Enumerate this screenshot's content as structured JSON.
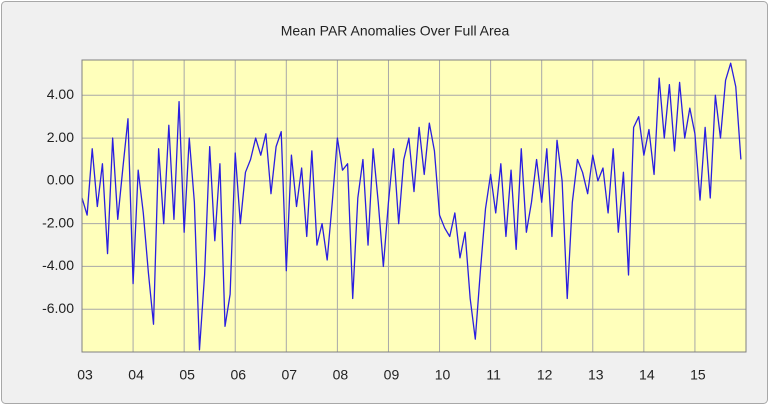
{
  "chart_data": {
    "type": "line",
    "title": "Mean PAR Anomalies Over Full Area",
    "x": [
      2003.0,
      2003.1,
      2003.2,
      2003.3,
      2003.4,
      2003.5,
      2003.6,
      2003.7,
      2003.8,
      2003.9,
      2004.0,
      2004.1,
      2004.2,
      2004.3,
      2004.4,
      2004.5,
      2004.6,
      2004.7,
      2004.8,
      2004.9,
      2005.0,
      2005.1,
      2005.2,
      2005.3,
      2005.4,
      2005.5,
      2005.6,
      2005.7,
      2005.8,
      2005.9,
      2006.0,
      2006.1,
      2006.2,
      2006.3,
      2006.4,
      2006.5,
      2006.6,
      2006.7,
      2006.8,
      2006.9,
      2007.0,
      2007.1,
      2007.2,
      2007.3,
      2007.4,
      2007.5,
      2007.6,
      2007.7,
      2007.8,
      2007.9,
      2008.0,
      2008.1,
      2008.2,
      2008.3,
      2008.4,
      2008.5,
      2008.6,
      2008.7,
      2008.8,
      2008.9,
      2009.0,
      2009.1,
      2009.2,
      2009.3,
      2009.4,
      2009.5,
      2009.6,
      2009.7,
      2009.8,
      2009.9,
      2010.0,
      2010.1,
      2010.2,
      2010.3,
      2010.4,
      2010.5,
      2010.6,
      2010.7,
      2010.8,
      2010.9,
      2011.0,
      2011.1,
      2011.2,
      2011.3,
      2011.4,
      2011.5,
      2011.6,
      2011.7,
      2011.8,
      2011.9,
      2012.0,
      2012.1,
      2012.2,
      2012.3,
      2012.4,
      2012.5,
      2012.6,
      2012.7,
      2012.8,
      2012.9,
      2013.0,
      2013.1,
      2013.2,
      2013.3,
      2013.4,
      2013.5,
      2013.6,
      2013.7,
      2013.8,
      2013.9,
      2014.0,
      2014.1,
      2014.2,
      2014.3,
      2014.4,
      2014.5,
      2014.6,
      2014.7,
      2014.8,
      2014.9,
      2015.0,
      2015.1,
      2015.2,
      2015.3,
      2015.4,
      2015.5,
      2015.6,
      2015.7,
      2015.8,
      2015.9
    ],
    "values": [
      -0.8,
      -1.6,
      1.5,
      -1.2,
      0.8,
      -3.4,
      2.0,
      -1.8,
      0.6,
      2.9,
      -4.8,
      0.5,
      -1.5,
      -4.3,
      -6.7,
      1.5,
      -2.0,
      2.6,
      -1.8,
      3.7,
      -2.4,
      2.0,
      -1.0,
      -7.9,
      -4.4,
      1.6,
      -2.8,
      0.8,
      -6.8,
      -5.3,
      1.3,
      -2.0,
      0.4,
      1.0,
      2.0,
      1.2,
      2.2,
      -0.6,
      1.6,
      2.3,
      -4.2,
      1.2,
      -1.2,
      0.6,
      -2.6,
      1.4,
      -3.0,
      -2.0,
      -3.7,
      -1.0,
      2.0,
      0.5,
      0.8,
      -5.5,
      -0.8,
      1.0,
      -3.0,
      1.5,
      -1.0,
      -4.0,
      -1.0,
      1.5,
      -2.0,
      1.0,
      2.0,
      -0.5,
      2.5,
      0.3,
      2.7,
      1.4,
      -1.6,
      -2.2,
      -2.6,
      -1.5,
      -3.6,
      -2.4,
      -5.5,
      -7.4,
      -4.2,
      -1.3,
      0.3,
      -1.5,
      0.8,
      -2.6,
      0.5,
      -3.2,
      1.5,
      -2.4,
      -1.0,
      1.0,
      -1.0,
      1.5,
      -2.6,
      1.9,
      0.0,
      -5.5,
      -1.0,
      1.0,
      0.4,
      -0.6,
      1.2,
      0.0,
      0.6,
      -1.5,
      1.5,
      -2.4,
      0.4,
      -4.4,
      2.5,
      3.0,
      1.2,
      2.4,
      0.3,
      4.8,
      2.0,
      4.5,
      1.4,
      4.6,
      2.0,
      3.4,
      2.2,
      -0.9,
      2.5,
      -0.8,
      4.0,
      2.0,
      4.7,
      5.5,
      4.4,
      1.0
    ],
    "color": "#2a1ee0",
    "xlim": [
      2003,
      2016
    ],
    "xticks": [
      {
        "value": 2003,
        "label": "03"
      },
      {
        "value": 2004,
        "label": "04"
      },
      {
        "value": 2005,
        "label": "05"
      },
      {
        "value": 2006,
        "label": "06"
      },
      {
        "value": 2007,
        "label": "07"
      },
      {
        "value": 2008,
        "label": "08"
      },
      {
        "value": 2009,
        "label": "09"
      },
      {
        "value": 2010,
        "label": "10"
      },
      {
        "value": 2011,
        "label": "11"
      },
      {
        "value": 2012,
        "label": "12"
      },
      {
        "value": 2013,
        "label": "13"
      },
      {
        "value": 2014,
        "label": "14"
      },
      {
        "value": 2015,
        "label": "15"
      }
    ],
    "ylim": [
      -8,
      5.65
    ],
    "yticks": [
      {
        "value": -6,
        "label": "-6.00"
      },
      {
        "value": -4,
        "label": "-4.00"
      },
      {
        "value": -2,
        "label": "-2.00"
      },
      {
        "value": 0,
        "label": "0.00"
      },
      {
        "value": 2,
        "label": "2.00"
      },
      {
        "value": 4,
        "label": "4.00"
      }
    ],
    "grid": true
  }
}
